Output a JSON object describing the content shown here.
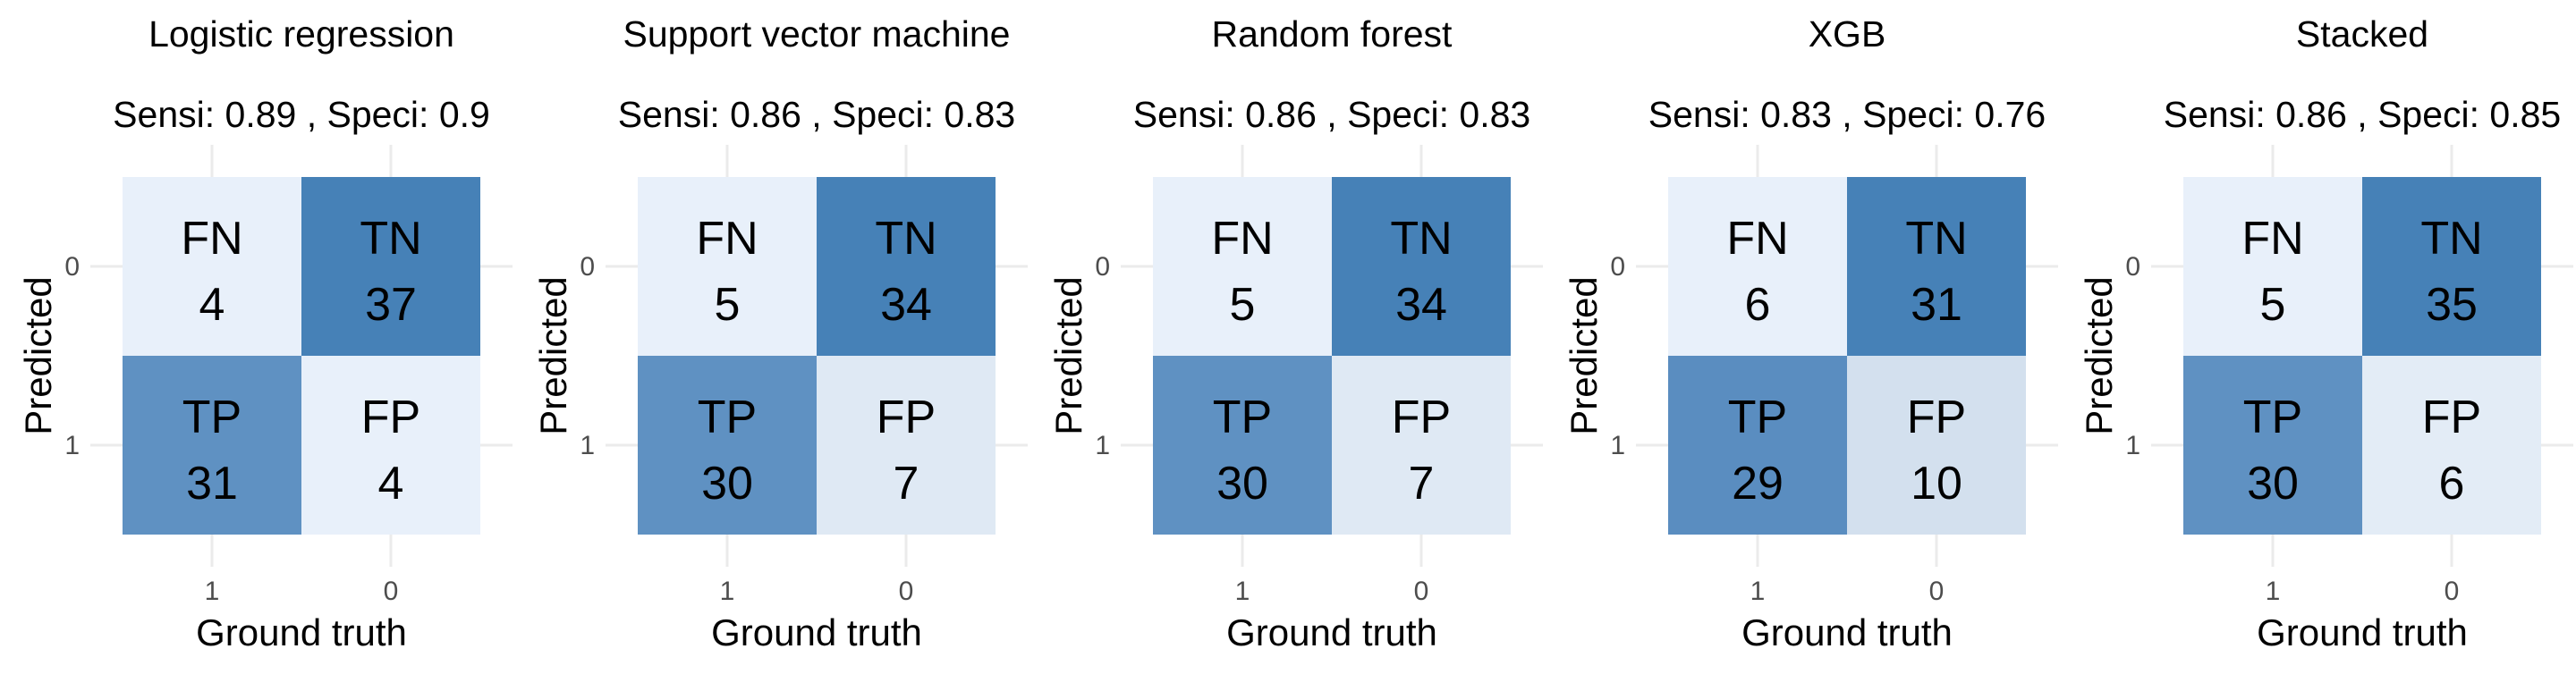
{
  "chart_data": [
    {
      "type": "heatmap",
      "title": "Logistic regression",
      "subtitle": "Sensi: 0.89 , Speci: 0.9",
      "xlabel": "Ground truth",
      "ylabel": "Predicted",
      "x_ticks": [
        "1",
        "0"
      ],
      "y_ticks": [
        "0",
        "1"
      ],
      "cells": [
        {
          "label": "FN",
          "value": "4",
          "x": "1",
          "y": "0",
          "fill": "#e8f0fa"
        },
        {
          "label": "TN",
          "value": "37",
          "x": "0",
          "y": "0",
          "fill": "#4681b7"
        },
        {
          "label": "TP",
          "value": "31",
          "x": "1",
          "y": "1",
          "fill": "#5f91c2"
        },
        {
          "label": "FP",
          "value": "4",
          "x": "0",
          "y": "1",
          "fill": "#e8f0fa"
        }
      ]
    },
    {
      "type": "heatmap",
      "title": "Support vector machine",
      "subtitle": "Sensi: 0.86 , Speci: 0.83",
      "xlabel": "Ground truth",
      "ylabel": "Predicted",
      "x_ticks": [
        "1",
        "0"
      ],
      "y_ticks": [
        "0",
        "1"
      ],
      "cells": [
        {
          "label": "FN",
          "value": "5",
          "x": "1",
          "y": "0",
          "fill": "#e8f0fa"
        },
        {
          "label": "TN",
          "value": "34",
          "x": "0",
          "y": "0",
          "fill": "#4681b7"
        },
        {
          "label": "TP",
          "value": "30",
          "x": "1",
          "y": "1",
          "fill": "#5f91c2"
        },
        {
          "label": "FP",
          "value": "7",
          "x": "0",
          "y": "1",
          "fill": "#dfe9f4"
        }
      ]
    },
    {
      "type": "heatmap",
      "title": "Random forest",
      "subtitle": "Sensi: 0.86 , Speci: 0.83",
      "xlabel": "Ground truth",
      "ylabel": "Predicted",
      "x_ticks": [
        "1",
        "0"
      ],
      "y_ticks": [
        "0",
        "1"
      ],
      "cells": [
        {
          "label": "FN",
          "value": "5",
          "x": "1",
          "y": "0",
          "fill": "#e8f0fa"
        },
        {
          "label": "TN",
          "value": "34",
          "x": "0",
          "y": "0",
          "fill": "#4681b7"
        },
        {
          "label": "TP",
          "value": "30",
          "x": "1",
          "y": "1",
          "fill": "#5f91c2"
        },
        {
          "label": "FP",
          "value": "7",
          "x": "0",
          "y": "1",
          "fill": "#dfe9f4"
        }
      ]
    },
    {
      "type": "heatmap",
      "title": "XGB",
      "subtitle": "Sensi: 0.83 , Speci: 0.76",
      "xlabel": "Ground truth",
      "ylabel": "Predicted",
      "x_ticks": [
        "1",
        "0"
      ],
      "y_ticks": [
        "0",
        "1"
      ],
      "cells": [
        {
          "label": "FN",
          "value": "6",
          "x": "1",
          "y": "0",
          "fill": "#e8f0fa"
        },
        {
          "label": "TN",
          "value": "31",
          "x": "0",
          "y": "0",
          "fill": "#4681b7"
        },
        {
          "label": "TP",
          "value": "29",
          "x": "1",
          "y": "1",
          "fill": "#5a8dc0"
        },
        {
          "label": "FP",
          "value": "10",
          "x": "0",
          "y": "1",
          "fill": "#d3e0ee"
        }
      ]
    },
    {
      "type": "heatmap",
      "title": "Stacked",
      "subtitle": "Sensi: 0.86 , Speci: 0.85",
      "xlabel": "Ground truth",
      "ylabel": "Predicted",
      "x_ticks": [
        "1",
        "0"
      ],
      "y_ticks": [
        "0",
        "1"
      ],
      "cells": [
        {
          "label": "FN",
          "value": "5",
          "x": "1",
          "y": "0",
          "fill": "#e8f0fa"
        },
        {
          "label": "TN",
          "value": "35",
          "x": "0",
          "y": "0",
          "fill": "#4681b7"
        },
        {
          "label": "TP",
          "value": "30",
          "x": "1",
          "y": "1",
          "fill": "#5f91c2"
        },
        {
          "label": "FP",
          "value": "6",
          "x": "0",
          "y": "1",
          "fill": "#e3ecf6"
        }
      ]
    }
  ]
}
